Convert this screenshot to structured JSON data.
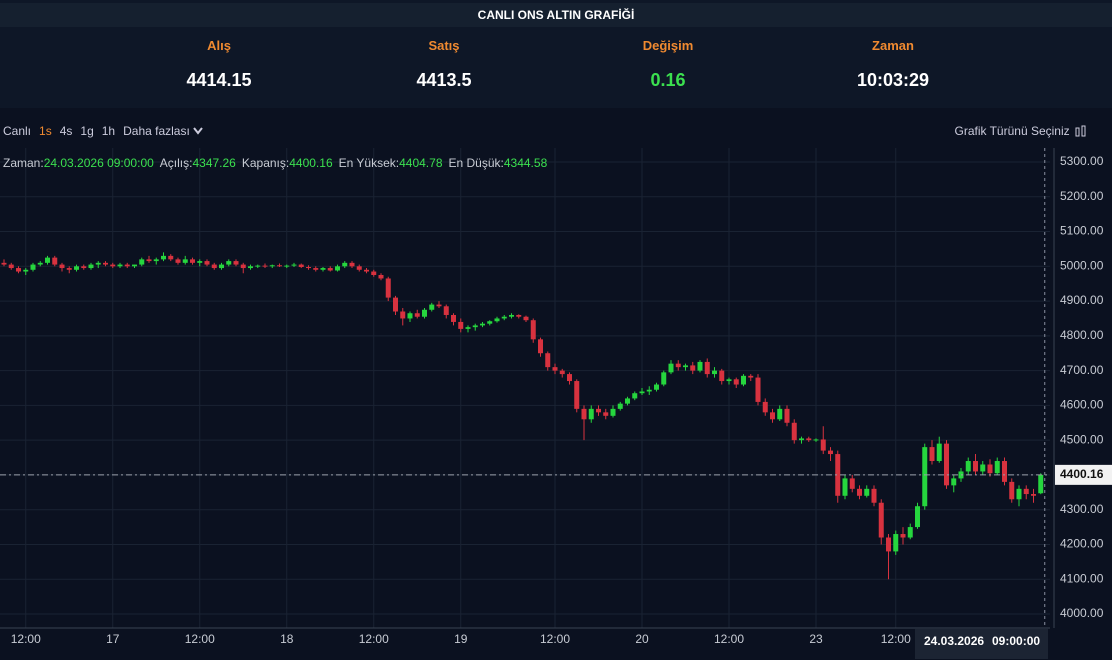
{
  "header": {
    "title": "CANLI ONS ALTIN GRAFİĞİ",
    "quotes": [
      {
        "label": "Alış",
        "value": "4414.15"
      },
      {
        "label": "Satış",
        "value": "4413.5"
      },
      {
        "label": "Değişim",
        "value": "0.16"
      },
      {
        "label": "Zaman",
        "value": "10:03:29"
      }
    ]
  },
  "toolbar": {
    "items": [
      "Canlı",
      "1s",
      "4s",
      "1g",
      "1h",
      "Daha fazlası"
    ],
    "active": 1,
    "chart_type": "Grafik Türünü Seçiniz"
  },
  "tooltip": {
    "labels": [
      "Zaman:",
      "Açılış:",
      "Kapanış:",
      "En Yüksek:",
      "En Düşük:"
    ],
    "time": "24.03.2026 09:00:00"
  },
  "crosshair": {
    "date": "24.03.2026",
    "time": "09:00:00"
  },
  "chart_data": {
    "type": "candlestick",
    "up_color": "#26d63e",
    "down_color": "#d8323f",
    "grid": true,
    "ylim": [
      3960,
      5335
    ],
    "yticks": [
      {
        "value": 4000,
        "label": "4000.00"
      },
      {
        "value": 4100,
        "label": "4100.00"
      },
      {
        "value": 4200,
        "label": "4200.00"
      },
      {
        "value": 4300,
        "label": "4300.00"
      },
      {
        "value": 4400,
        "label": "4400.00"
      },
      {
        "value": 4500,
        "label": "4500.00"
      },
      {
        "value": 4600,
        "label": "4600.00"
      },
      {
        "value": 4700,
        "label": "4700.00"
      },
      {
        "value": 4800,
        "label": "4800.00"
      },
      {
        "value": 4900,
        "label": "4900.00"
      },
      {
        "value": 5000,
        "label": "5000.00"
      },
      {
        "value": 5100,
        "label": "5100.00"
      },
      {
        "value": 5200,
        "label": "5200.00"
      },
      {
        "value": 5300,
        "label": "5300.00"
      }
    ],
    "xticks": [
      {
        "value": 3,
        "label": "12:00"
      },
      {
        "value": 15,
        "label": "17"
      },
      {
        "value": 27,
        "label": "12:00"
      },
      {
        "value": 39,
        "label": "18"
      },
      {
        "value": 51,
        "label": "12:00"
      },
      {
        "value": 63,
        "label": "19"
      },
      {
        "value": 76,
        "label": "12:00"
      },
      {
        "value": 88,
        "label": "20"
      },
      {
        "value": 100,
        "label": "12:00"
      },
      {
        "value": 112,
        "label": "23"
      },
      {
        "value": 123,
        "label": "12:00"
      }
    ],
    "candles": [
      [
        5010,
        5020,
        5000,
        5005
      ],
      [
        5005,
        5010,
        4990,
        4995
      ],
      [
        4995,
        5000,
        4980,
        4985
      ],
      [
        4985,
        4995,
        4975,
        4990
      ],
      [
        4990,
        5010,
        4985,
        5005
      ],
      [
        5005,
        5015,
        5000,
        5010
      ],
      [
        5010,
        5030,
        5005,
        5025
      ],
      [
        5025,
        5030,
        5000,
        5005
      ],
      [
        5005,
        5010,
        4985,
        4995
      ],
      [
        4995,
        5000,
        4980,
        4990
      ],
      [
        4990,
        5005,
        4985,
        5000
      ],
      [
        5000,
        5005,
        4990,
        4995
      ],
      [
        4995,
        5010,
        4990,
        5005
      ],
      [
        5005,
        5015,
        4995,
        5010
      ],
      [
        5010,
        5015,
        5000,
        5005
      ],
      [
        5005,
        5010,
        4995,
        5000
      ],
      [
        5000,
        5010,
        4995,
        5005
      ],
      [
        5005,
        5010,
        4995,
        5000
      ],
      [
        5000,
        5005,
        4995,
        5005
      ],
      [
        5005,
        5025,
        5000,
        5020
      ],
      [
        5020,
        5030,
        5010,
        5015
      ],
      [
        5015,
        5025,
        5005,
        5020
      ],
      [
        5020,
        5040,
        5015,
        5030
      ],
      [
        5030,
        5035,
        5015,
        5020
      ],
      [
        5020,
        5025,
        5005,
        5010
      ],
      [
        5010,
        5030,
        5005,
        5020
      ],
      [
        5020,
        5025,
        5005,
        5010
      ],
      [
        5010,
        5020,
        5000,
        5015
      ],
      [
        5015,
        5020,
        5000,
        5005
      ],
      [
        5005,
        5010,
        4990,
        4995
      ],
      [
        4995,
        5010,
        4990,
        5005
      ],
      [
        5005,
        5020,
        5000,
        5015
      ],
      [
        5015,
        5020,
        5000,
        5005
      ],
      [
        5005,
        5010,
        4980,
        4995
      ],
      [
        4995,
        5005,
        4990,
        5000
      ],
      [
        5000,
        5005,
        4995,
        5002
      ],
      [
        5002,
        5008,
        4995,
        5000
      ],
      [
        5000,
        5005,
        4995,
        5003
      ],
      [
        5003,
        5008,
        4998,
        5000
      ],
      [
        5000,
        5005,
        4995,
        5002
      ],
      [
        5002,
        5010,
        4998,
        5005
      ],
      [
        5005,
        5008,
        4995,
        4998
      ],
      [
        4998,
        5003,
        4990,
        4995
      ],
      [
        4995,
        5000,
        4985,
        4990
      ],
      [
        4990,
        4998,
        4985,
        4995
      ],
      [
        4995,
        5000,
        4985,
        4988
      ],
      [
        4988,
        5005,
        4985,
        5000
      ],
      [
        5000,
        5015,
        4995,
        5010
      ],
      [
        5010,
        5015,
        4995,
        5000
      ],
      [
        5000,
        5005,
        4985,
        4990
      ],
      [
        4990,
        4995,
        4980,
        4985
      ],
      [
        4985,
        4990,
        4970,
        4975
      ],
      [
        4975,
        4980,
        4960,
        4965
      ],
      [
        4965,
        4970,
        4900,
        4910
      ],
      [
        4910,
        4915,
        4860,
        4870
      ],
      [
        4870,
        4880,
        4830,
        4850
      ],
      [
        4850,
        4870,
        4840,
        4865
      ],
      [
        4865,
        4875,
        4850,
        4855
      ],
      [
        4855,
        4880,
        4850,
        4875
      ],
      [
        4875,
        4895,
        4870,
        4890
      ],
      [
        4890,
        4900,
        4880,
        4885
      ],
      [
        4885,
        4890,
        4850,
        4860
      ],
      [
        4860,
        4865,
        4830,
        4840
      ],
      [
        4840,
        4850,
        4810,
        4820
      ],
      [
        4820,
        4830,
        4810,
        4825
      ],
      [
        4825,
        4835,
        4815,
        4830
      ],
      [
        4830,
        4840,
        4825,
        4835
      ],
      [
        4835,
        4845,
        4830,
        4842
      ],
      [
        4842,
        4855,
        4838,
        4850
      ],
      [
        4850,
        4860,
        4845,
        4855
      ],
      [
        4855,
        4865,
        4850,
        4860
      ],
      [
        4860,
        4862,
        4850,
        4855
      ],
      [
        4855,
        4858,
        4840,
        4845
      ],
      [
        4845,
        4850,
        4780,
        4790
      ],
      [
        4790,
        4795,
        4740,
        4750
      ],
      [
        4750,
        4755,
        4700,
        4710
      ],
      [
        4710,
        4720,
        4690,
        4700
      ],
      [
        4700,
        4705,
        4680,
        4690
      ],
      [
        4690,
        4695,
        4660,
        4670
      ],
      [
        4670,
        4675,
        4580,
        4590
      ],
      [
        4590,
        4600,
        4500,
        4560
      ],
      [
        4560,
        4600,
        4550,
        4590
      ],
      [
        4590,
        4600,
        4570,
        4580
      ],
      [
        4580,
        4590,
        4560,
        4570
      ],
      [
        4570,
        4600,
        4565,
        4590
      ],
      [
        4590,
        4610,
        4585,
        4605
      ],
      [
        4605,
        4625,
        4600,
        4620
      ],
      [
        4620,
        4640,
        4615,
        4635
      ],
      [
        4635,
        4650,
        4630,
        4640
      ],
      [
        4640,
        4655,
        4630,
        4645
      ],
      [
        4645,
        4665,
        4640,
        4660
      ],
      [
        4660,
        4700,
        4655,
        4695
      ],
      [
        4695,
        4730,
        4690,
        4720
      ],
      [
        4720,
        4730,
        4700,
        4710
      ],
      [
        4710,
        4720,
        4700,
        4715
      ],
      [
        4715,
        4725,
        4690,
        4700
      ],
      [
        4700,
        4730,
        4695,
        4725
      ],
      [
        4725,
        4735,
        4680,
        4690
      ],
      [
        4690,
        4710,
        4680,
        4700
      ],
      [
        4700,
        4705,
        4660,
        4670
      ],
      [
        4670,
        4680,
        4660,
        4675
      ],
      [
        4675,
        4680,
        4650,
        4660
      ],
      [
        4660,
        4690,
        4655,
        4685
      ],
      [
        4685,
        4690,
        4670,
        4680
      ],
      [
        4680,
        4690,
        4600,
        4610
      ],
      [
        4610,
        4620,
        4570,
        4580
      ],
      [
        4580,
        4590,
        4550,
        4560
      ],
      [
        4560,
        4600,
        4555,
        4590
      ],
      [
        4590,
        4600,
        4540,
        4550
      ],
      [
        4550,
        4560,
        4490,
        4500
      ],
      [
        4500,
        4510,
        4490,
        4505
      ],
      [
        4505,
        4510,
        4495,
        4500
      ],
      [
        4500,
        4505,
        4495,
        4502
      ],
      [
        4502,
        4540,
        4460,
        4470
      ],
      [
        4470,
        4480,
        4440,
        4460
      ],
      [
        4460,
        4470,
        4320,
        4340
      ],
      [
        4340,
        4400,
        4330,
        4390
      ],
      [
        4390,
        4400,
        4350,
        4360
      ],
      [
        4360,
        4370,
        4330,
        4340
      ],
      [
        4340,
        4370,
        4335,
        4360
      ],
      [
        4360,
        4370,
        4310,
        4320
      ],
      [
        4320,
        4330,
        4200,
        4220
      ],
      [
        4220,
        4230,
        4100,
        4180
      ],
      [
        4180,
        4240,
        4170,
        4230
      ],
      [
        4230,
        4250,
        4200,
        4220
      ],
      [
        4220,
        4260,
        4215,
        4250
      ],
      [
        4250,
        4320,
        4245,
        4310
      ],
      [
        4310,
        4490,
        4300,
        4480
      ],
      [
        4480,
        4500,
        4430,
        4440
      ],
      [
        4440,
        4510,
        4435,
        4490
      ],
      [
        4490,
        4500,
        4360,
        4370
      ],
      [
        4370,
        4400,
        4350,
        4390
      ],
      [
        4390,
        4420,
        4380,
        4410
      ],
      [
        4410,
        4450,
        4400,
        4440
      ],
      [
        4440,
        4460,
        4400,
        4410
      ],
      [
        4410,
        4440,
        4400,
        4430
      ],
      [
        4430,
        4445,
        4395,
        4405
      ],
      [
        4405,
        4450,
        4400,
        4440
      ],
      [
        4440,
        4450,
        4370,
        4380
      ],
      [
        4380,
        4390,
        4320,
        4330
      ],
      [
        4330,
        4370,
        4310,
        4360
      ],
      [
        4360,
        4370,
        4330,
        4345
      ],
      [
        4345,
        4360,
        4320,
        4340
      ],
      [
        4347.26,
        4404.78,
        4344.58,
        4400.16
      ]
    ]
  }
}
